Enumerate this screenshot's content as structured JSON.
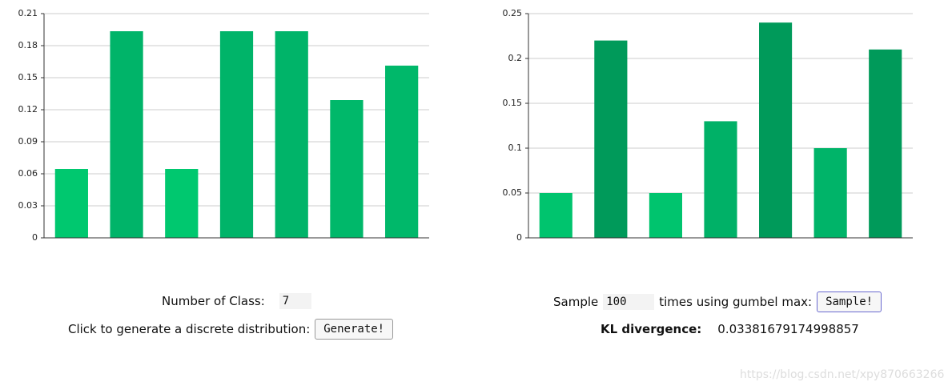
{
  "chart_data": [
    {
      "type": "bar",
      "values": [
        0.0645,
        0.1935,
        0.0645,
        0.1935,
        0.1935,
        0.129,
        0.1613
      ],
      "colors": [
        "#00c86f",
        "#00b469",
        "#00c86f",
        "#00b469",
        "#00b469",
        "#00b86a",
        "#00b86a"
      ],
      "ylim": [
        0,
        0.21
      ],
      "yticks": [
        0,
        0.03,
        0.06,
        0.09,
        0.12,
        0.15,
        0.18,
        0.21
      ],
      "grid": true
    },
    {
      "type": "bar",
      "values": [
        0.05,
        0.22,
        0.05,
        0.13,
        0.24,
        0.1,
        0.21
      ],
      "colors": [
        "#00c46e",
        "#009a5a",
        "#00c46e",
        "#00b167",
        "#009a5a",
        "#00b469",
        "#009a5a"
      ],
      "ylim": [
        0,
        0.25
      ],
      "yticks": [
        0,
        0.05,
        0.1,
        0.15,
        0.2,
        0.25
      ],
      "grid": true
    }
  ],
  "controls": {
    "class_label": "Number of Class:",
    "class_value": "7",
    "generate_label": "Click to generate a discrete distribution:",
    "generate_button": "Generate!",
    "sample_prefix": "Sample",
    "sample_value": "100",
    "sample_suffix": "times using gumbel max:",
    "sample_button": "Sample!",
    "kl_label": "KL divergence:",
    "kl_value": "0.03381679174998857"
  },
  "watermark": "https://blog.csdn.net/xpy870663266"
}
